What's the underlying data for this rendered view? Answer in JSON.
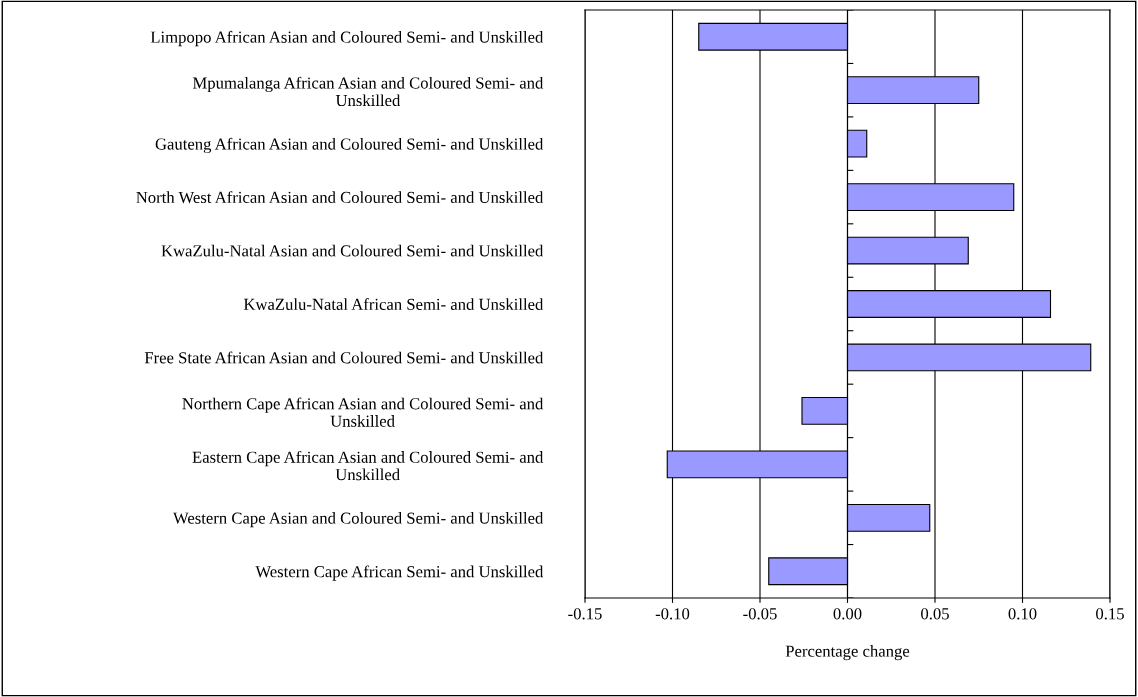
{
  "chart_data": {
    "type": "bar",
    "orientation": "horizontal",
    "xlabel": "Percentage change",
    "categories": [
      "Limpopo African Asian and Coloured Semi- and Unskilled",
      "Mpumalanga African Asian and Coloured Semi- and\nUnskilled",
      "Gauteng African Asian and Coloured Semi- and Unskilled",
      "North West African Asian and Coloured Semi- and Unskilled",
      "KwaZulu-Natal Asian and Coloured Semi- and Unskilled",
      "KwaZulu-Natal African Semi- and Unskilled",
      "Free State African Asian and Coloured Semi- and Unskilled",
      "Northern Cape African Asian and Coloured Semi- and\nUnskilled",
      "Eastern Cape African Asian and Coloured Semi- and\nUnskilled",
      "Western Cape Asian and Coloured Semi- and Unskilled",
      "Western Cape African Semi- and Unskilled"
    ],
    "values": [
      -0.085,
      0.075,
      0.011,
      0.095,
      0.069,
      0.116,
      0.139,
      -0.026,
      -0.103,
      0.047,
      -0.045
    ],
    "color": "#9999ff",
    "xlim": [
      -0.15,
      0.15
    ],
    "xticks": [
      {
        "value": -0.15,
        "label": "-0.15"
      },
      {
        "value": -0.1,
        "label": "-0.10"
      },
      {
        "value": -0.05,
        "label": "-0.05"
      },
      {
        "value": 0,
        "label": "0.00"
      },
      {
        "value": 0.05,
        "label": "0.05"
      },
      {
        "value": 0.1,
        "label": "0.10"
      },
      {
        "value": 0.15,
        "label": "0.15"
      }
    ],
    "grid": "x"
  }
}
